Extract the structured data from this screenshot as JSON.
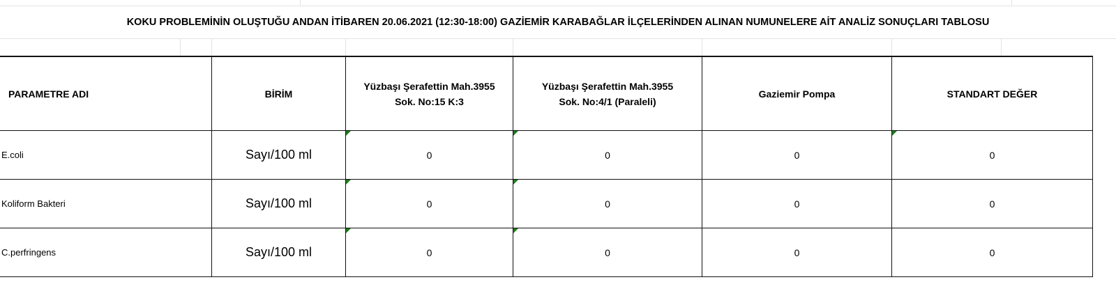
{
  "sheet": {
    "title": "KOKU PROBLEMİNİN OLUŞTUĞU ANDAN İTİBAREN 20.06.2021 (12:30-18:00) GAZİEMİR KARABAĞLAR İLÇELERİNDEN ALINAN NUMUNELERE AİT ANALİZ SONUÇLARI TABLOSU",
    "headers": [
      "PARAMETRE ADI",
      "BİRİM",
      "Yüzbaşı Şerafettin Mah.3955\nSok. No:15 K:3",
      "Yüzbaşı Şerafettin Mah.3955\nSok. No:4/1 (Paraleli)",
      "Gaziemir Pompa",
      "STANDART DEĞER"
    ],
    "header_lines": {
      "col3_line1": "Yüzbaşı Şerafettin Mah.3955",
      "col3_line2": "Sok. No:15 K:3",
      "col4_line1": "Yüzbaşı Şerafettin Mah.3955",
      "col4_line2": "Sok. No:4/1 (Paraleli)"
    },
    "rows": [
      {
        "param": "E.coli",
        "unit": "Sayı/100 ml",
        "v1": "0",
        "v2": "0",
        "v3": "0",
        "std": "0"
      },
      {
        "param": "Koliform Bakteri",
        "unit": "Sayı/100 ml",
        "v1": "0",
        "v2": "0",
        "v3": "0",
        "std": "0"
      },
      {
        "param": "C.perfringens",
        "unit": "Sayı/100 ml",
        "v1": "0",
        "v2": "0",
        "v3": "0",
        "std": "0"
      }
    ],
    "colors": {
      "error_indicator": "#1e7b1e",
      "border": "#111111",
      "gridline": "#e3e3e3"
    }
  }
}
